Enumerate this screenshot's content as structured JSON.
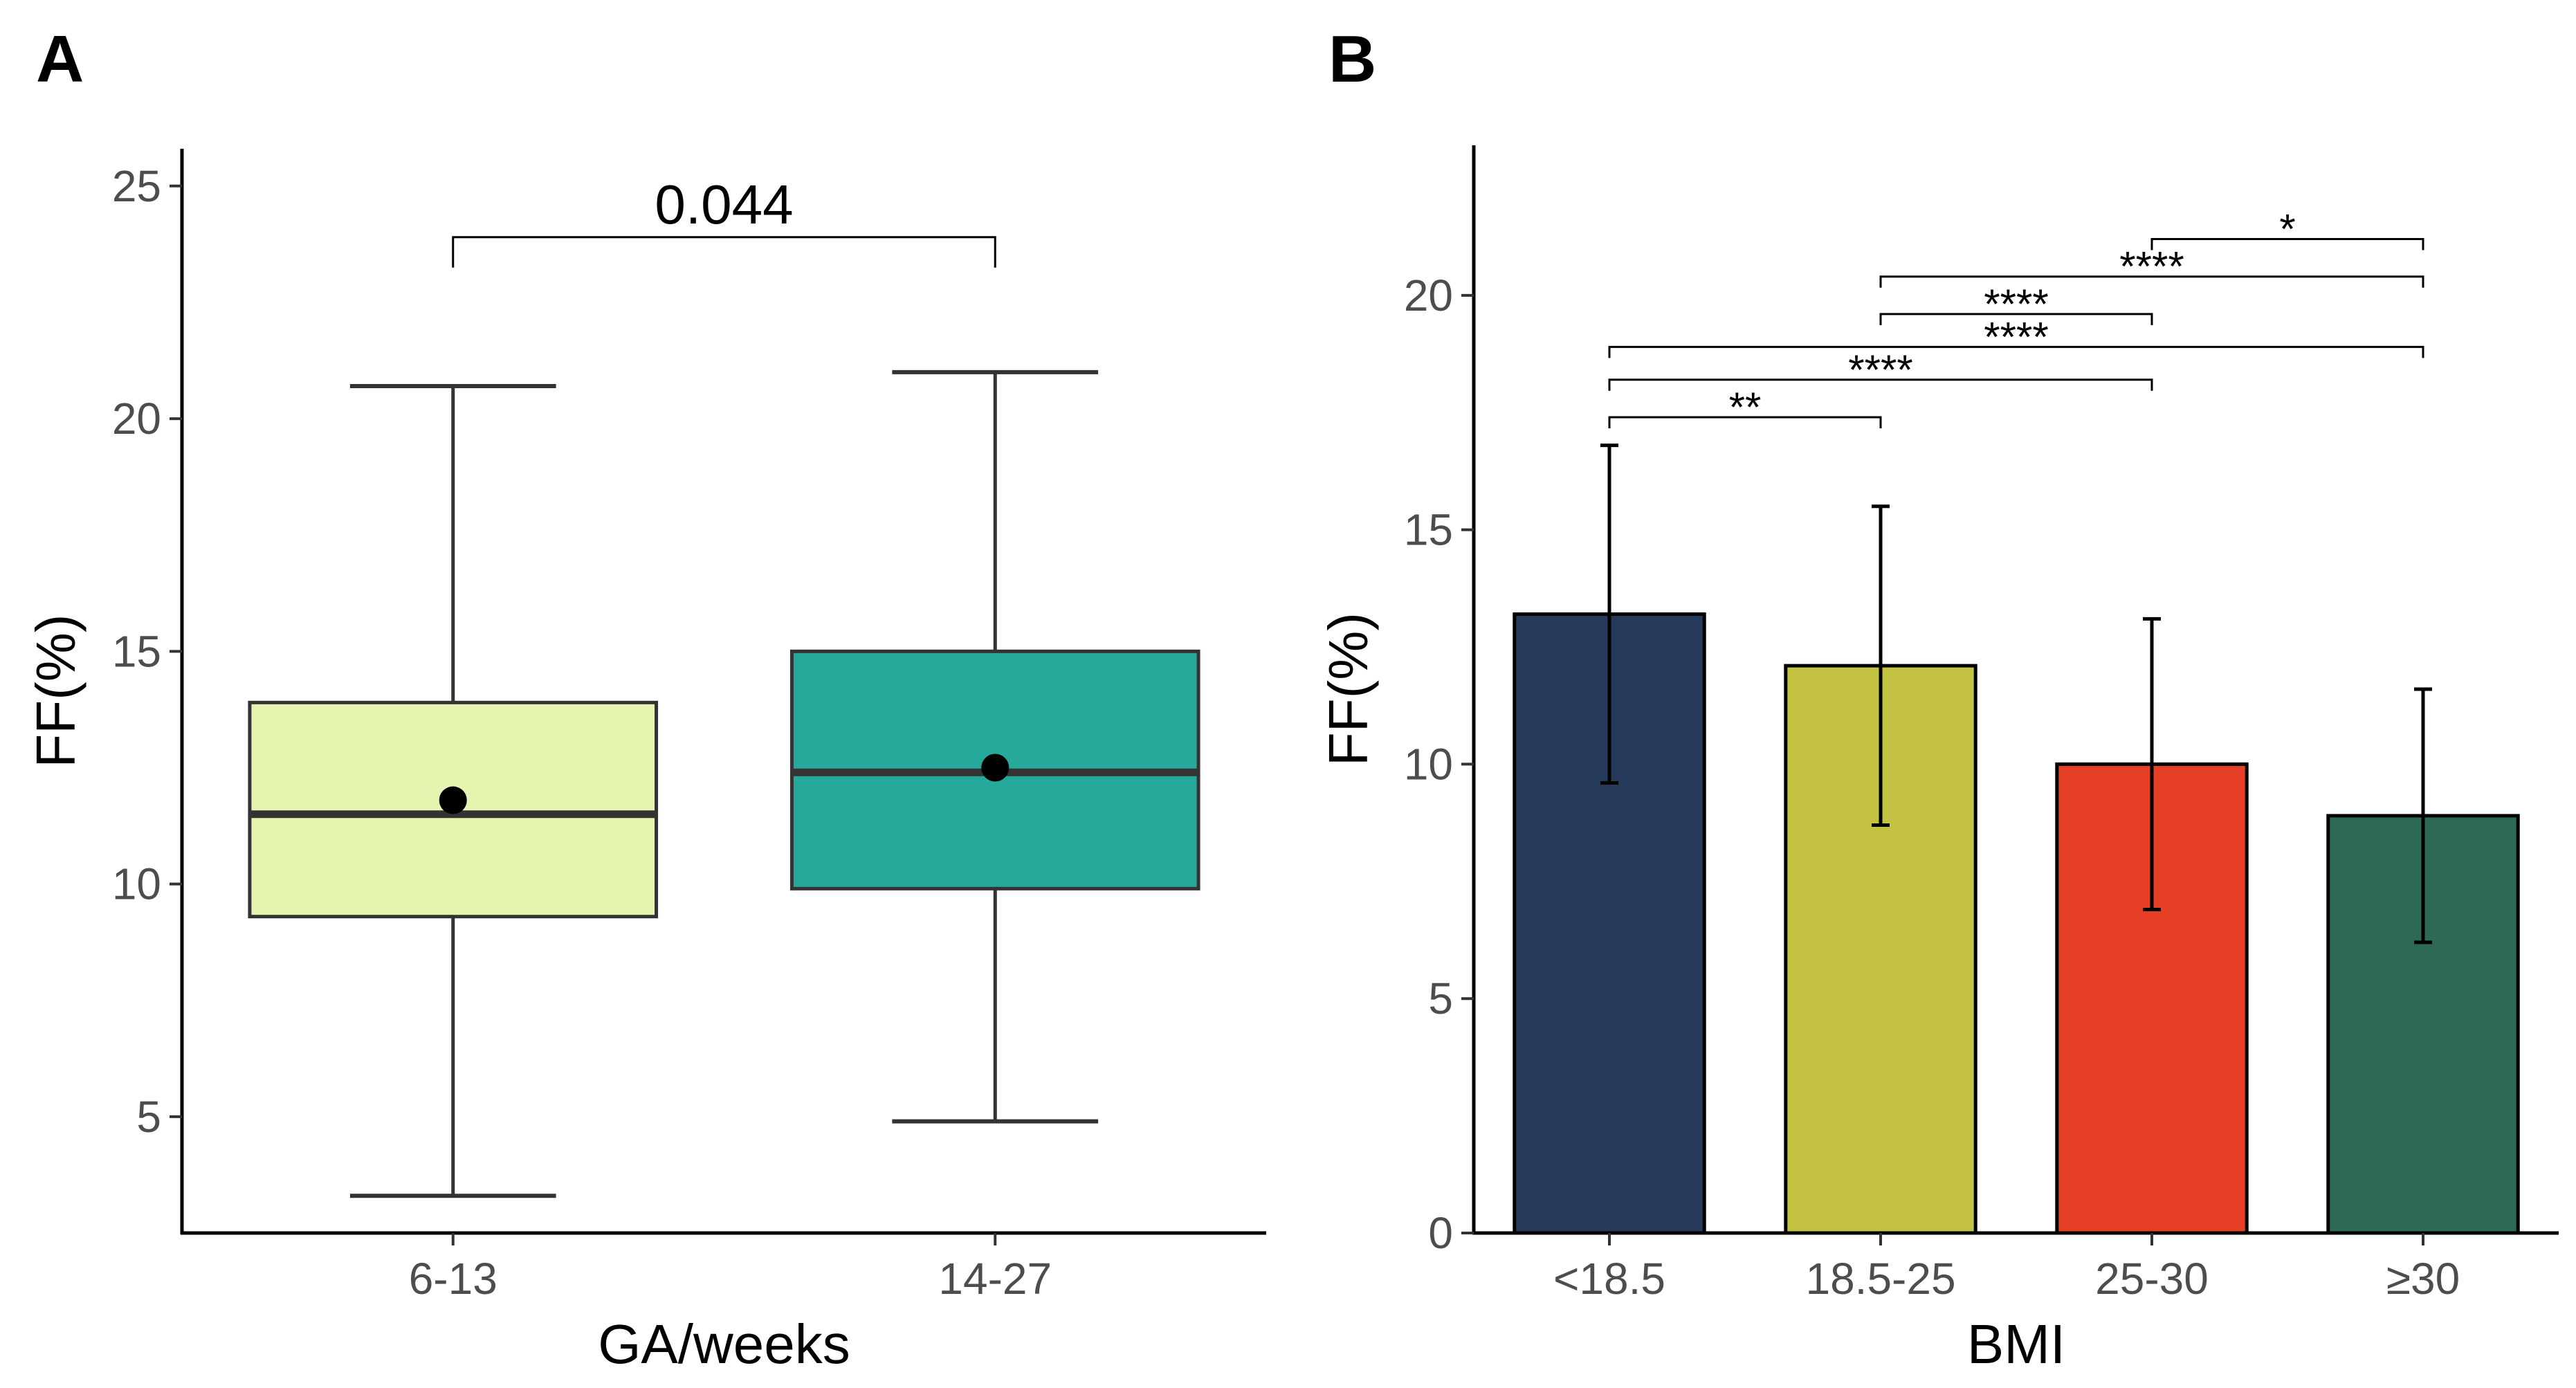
{
  "chart_data": [
    {
      "panel_label": "A",
      "type": "boxplot",
      "xlabel": "GA/weeks",
      "ylabel": "FF(%)",
      "ylim": [
        2.5,
        25.8
      ],
      "yticks": [
        5,
        10,
        15,
        20,
        25
      ],
      "categories": [
        "6-13",
        "14-27"
      ],
      "boxes": [
        {
          "category": "6-13",
          "min": 3.3,
          "q1": 9.3,
          "median": 11.5,
          "q3": 13.9,
          "max": 20.7,
          "mean": 11.8,
          "color": "#E5F5B0"
        },
        {
          "category": "14-27",
          "min": 4.9,
          "q1": 9.9,
          "median": 12.4,
          "q3": 15.0,
          "max": 21.0,
          "mean": 12.5,
          "color": "#26A99A"
        }
      ],
      "comparisons": [
        {
          "from": 0,
          "to": 1,
          "label": "0.044",
          "y": 23.9
        }
      ]
    },
    {
      "panel_label": "B",
      "type": "bar",
      "xlabel": "BMI",
      "ylabel": "FF(%)",
      "ylim": [
        0,
        23.2
      ],
      "yticks": [
        0,
        5,
        10,
        15,
        20
      ],
      "categories": [
        "<18.5",
        "18.5-25",
        "25-30",
        "≥30"
      ],
      "values": [
        13.2,
        12.1,
        10.0,
        8.9
      ],
      "error_low": [
        9.6,
        8.7,
        6.9,
        6.2
      ],
      "error_high": [
        16.8,
        15.5,
        13.1,
        11.6
      ],
      "colors": [
        "#263A5B",
        "#C3C341",
        "#E54026",
        "#2E6955"
      ],
      "comparisons": [
        {
          "from": 0,
          "to": 1,
          "label": "**",
          "y": 17.4
        },
        {
          "from": 0,
          "to": 2,
          "label": "****",
          "y": 18.2
        },
        {
          "from": 0,
          "to": 3,
          "label": "****",
          "y": 18.9
        },
        {
          "from": 1,
          "to": 2,
          "label": "****",
          "y": 19.6
        },
        {
          "from": 1,
          "to": 3,
          "label": "****",
          "y": 20.4
        },
        {
          "from": 2,
          "to": 3,
          "label": "*",
          "y": 21.2
        }
      ]
    }
  ]
}
